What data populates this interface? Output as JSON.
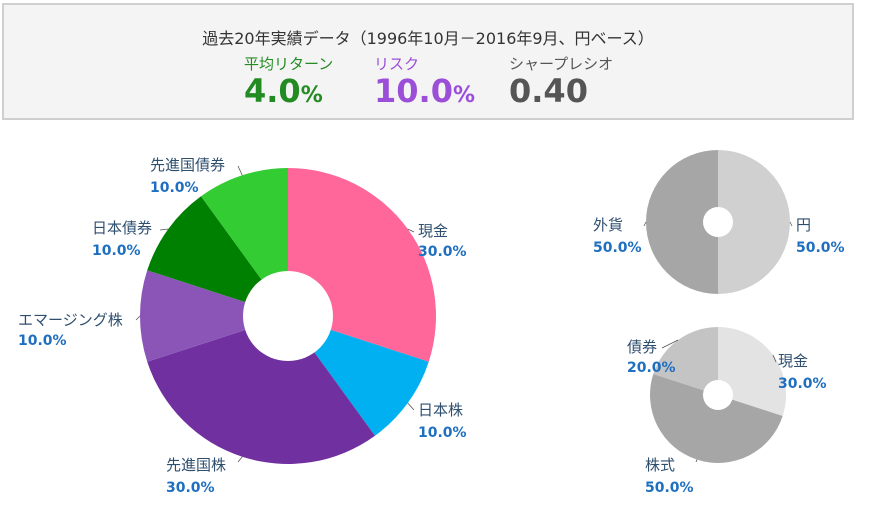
{
  "summary": {
    "title": "過去20年実績データ（1996年10月－2016年9月、円ベース）",
    "metrics": [
      {
        "label": "平均リターン",
        "value": "4.0",
        "unit": "%",
        "color": "#228B22"
      },
      {
        "label": "リスク",
        "value": "10.0",
        "unit": "%",
        "color": "#9B4FD8"
      },
      {
        "label": "シャープレシオ",
        "value": "0.40",
        "unit": "",
        "color": "#555555"
      }
    ]
  },
  "chart_data": [
    {
      "type": "pie",
      "title": "",
      "donut": true,
      "categories": [
        "現金",
        "日本株",
        "先進国株",
        "エマージング株",
        "日本債券",
        "先進国債券"
      ],
      "values": [
        30.0,
        10.0,
        30.0,
        10.0,
        10.0,
        10.0
      ],
      "labels": [
        "30.0%",
        "10.0%",
        "30.0%",
        "10.0%",
        "10.0%",
        "10.0%"
      ],
      "colors": [
        "#FF6699",
        "#00B0F0",
        "#7030A0",
        "#8B55B8",
        "#008000",
        "#33CC33"
      ]
    },
    {
      "type": "pie",
      "title": "",
      "donut": true,
      "categories": [
        "円",
        "外貨"
      ],
      "values": [
        50.0,
        50.0
      ],
      "labels": [
        "50.0%",
        "50.0%"
      ],
      "colors": [
        "#D0D0D0",
        "#A6A6A6"
      ]
    },
    {
      "type": "pie",
      "title": "",
      "donut": true,
      "categories": [
        "現金",
        "株式",
        "債券"
      ],
      "values": [
        30.0,
        50.0,
        20.0
      ],
      "labels": [
        "30.0%",
        "50.0%",
        "20.0%"
      ],
      "colors": [
        "#E3E3E3",
        "#A6A6A6",
        "#C4C4C4"
      ]
    }
  ]
}
